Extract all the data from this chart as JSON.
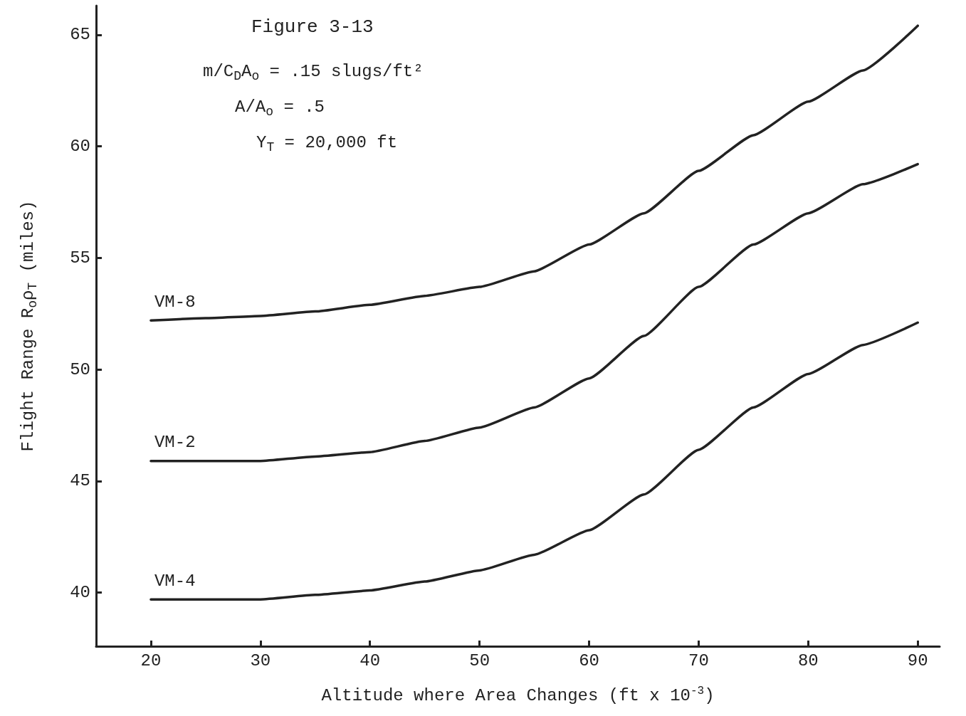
{
  "chart_data": {
    "type": "line",
    "title": "Figure 3-13",
    "xlabel": "Altitude where Area Changes (ft x 10$^{-3}$)",
    "ylabel": "Flight Range R$_{o}$ρ$_{T}$ (miles)",
    "annotations": [
      "m/C$_{D}$A$_{o}$ = .15 slugs/ft²",
      "A/A$_{o}$ = .5",
      "Y$_{T}$ = 20,000 ft"
    ],
    "x": [
      20,
      25,
      30,
      35,
      40,
      45,
      50,
      55,
      60,
      65,
      70,
      75,
      80,
      85,
      90
    ],
    "series": [
      {
        "name": "VM-8",
        "color": "#222222",
        "values": [
          52.2,
          52.3,
          52.4,
          52.6,
          52.9,
          53.3,
          53.7,
          54.4,
          55.6,
          57.0,
          58.9,
          60.5,
          62.0,
          63.4,
          65.4
        ]
      },
      {
        "name": "VM-2",
        "color": "#222222",
        "values": [
          45.9,
          45.9,
          45.9,
          46.1,
          46.3,
          46.8,
          47.4,
          48.3,
          49.6,
          51.5,
          53.7,
          55.6,
          57.0,
          58.3,
          59.2
        ]
      },
      {
        "name": "VM-4",
        "color": "#222222",
        "values": [
          39.7,
          39.7,
          39.7,
          39.9,
          40.1,
          40.5,
          41.0,
          41.7,
          42.8,
          44.4,
          46.4,
          48.3,
          49.8,
          51.1,
          52.1
        ]
      }
    ],
    "xlim": [
      15,
      92
    ],
    "ylim": [
      37.6,
      66.3
    ],
    "xticks": [
      20,
      30,
      40,
      50,
      60,
      70,
      80,
      90
    ],
    "yticks": [
      40,
      45,
      50,
      55,
      60,
      65
    ],
    "grid": false,
    "legend": false,
    "marker": "none",
    "line_style": "solid"
  }
}
